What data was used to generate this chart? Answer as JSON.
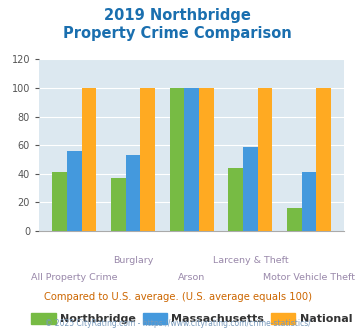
{
  "title_line1": "2019 Northbridge",
  "title_line2": "Property Crime Comparison",
  "title_color": "#1a6faf",
  "northbridge": [
    41,
    37,
    100,
    44,
    16
  ],
  "massachusetts": [
    56,
    53,
    100,
    59,
    41
  ],
  "national": [
    100,
    100,
    100,
    100,
    100
  ],
  "northbridge_color": "#77bb44",
  "massachusetts_color": "#4499dd",
  "national_color": "#ffaa22",
  "legend_labels": [
    "Northbridge",
    "Massachusetts",
    "National"
  ],
  "label_top": [
    "",
    "Burglary",
    "",
    "Larceny & Theft",
    ""
  ],
  "label_bottom": [
    "All Property Crime",
    "",
    "Arson",
    "",
    "Motor Vehicle Theft"
  ],
  "ylim": [
    0,
    120
  ],
  "yticks": [
    0,
    20,
    40,
    60,
    80,
    100,
    120
  ],
  "plot_bg_color": "#dce8f0",
  "xlabel_color": "#9988aa",
  "footer_text": "Compared to U.S. average. (U.S. average equals 100)",
  "footer_color": "#cc6600",
  "copyright_text": "© 2025 CityRating.com - https://www.cityrating.com/crime-statistics/",
  "copyright_color": "#7799bb",
  "bar_width": 0.25
}
